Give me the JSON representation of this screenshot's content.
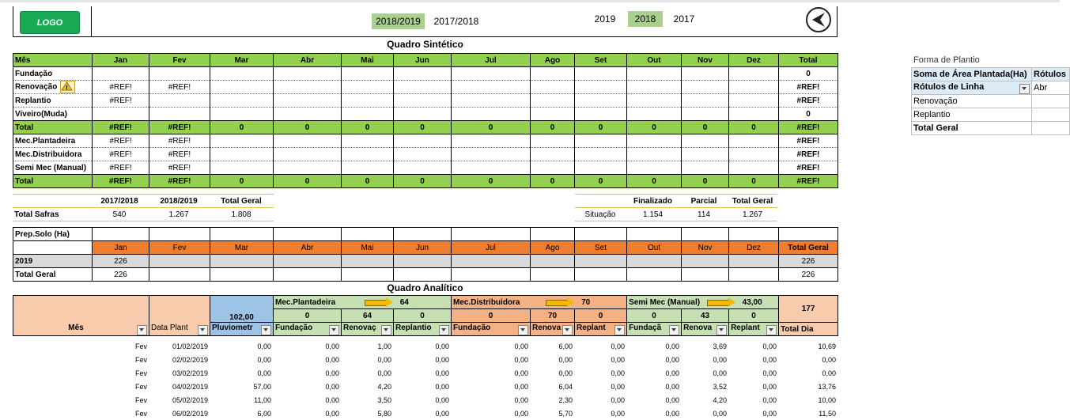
{
  "header": {
    "logo": "LOGO",
    "safra_options": [
      "2018/2019",
      "2017/2018"
    ],
    "safra_selected": "2018/2019",
    "year_options": [
      "2019",
      "2018",
      "2017"
    ],
    "year_selected": "2018",
    "nav_icon": "back-arrow-icon"
  },
  "sintetico": {
    "title": "Quadro Sintético",
    "columns": [
      "Mês",
      "Jan",
      "Fev",
      "Mar",
      "Abr",
      "Mai",
      "Jun",
      "Jul",
      "Ago",
      "Set",
      "Out",
      "Nov",
      "Dez",
      "Total"
    ],
    "rows": [
      {
        "label": "Fundação",
        "cells": [
          "",
          "",
          "",
          "",
          "",
          "",
          "",
          "",
          "",
          "",
          "",
          ""
        ],
        "total": "0"
      },
      {
        "label": "Renovação",
        "cells": [
          "#REF!",
          "#REF!",
          "",
          "",
          "",
          "",
          "",
          "",
          "",
          "",
          "",
          ""
        ],
        "total": "#REF!"
      },
      {
        "label": "Replantio",
        "cells": [
          "#REF!",
          "",
          "",
          "",
          "",
          "",
          "",
          "",
          "",
          "",
          "",
          ""
        ],
        "total": "#REF!"
      },
      {
        "label": "Viveiro(Muda)",
        "cells": [
          "",
          "",
          "",
          "",
          "",
          "",
          "",
          "",
          "",
          "",
          "",
          ""
        ],
        "total": "0"
      }
    ],
    "total1": {
      "label": "Total",
      "cells": [
        "#REF!",
        "#REF!",
        "0",
        "0",
        "0",
        "0",
        "0",
        "0",
        "0",
        "0",
        "0",
        "0"
      ],
      "total": "#REF!"
    },
    "rows2": [
      {
        "label": "Mec.Plantadeira",
        "cells": [
          "#REF!",
          "#REF!",
          "",
          "",
          "",
          "",
          "",
          "",
          "",
          "",
          "",
          ""
        ],
        "total": "#REF!"
      },
      {
        "label": "Mec.Distribuidora",
        "cells": [
          "#REF!",
          "#REF!",
          "",
          "",
          "",
          "",
          "",
          "",
          "",
          "",
          "",
          ""
        ],
        "total": "#REF!"
      },
      {
        "label": "Semi Mec (Manual)",
        "cells": [
          "#REF!",
          "#REF!",
          "",
          "",
          "",
          "",
          "",
          "",
          "",
          "",
          "",
          ""
        ],
        "total": "#REF!"
      }
    ],
    "total2": {
      "label": "Total",
      "cells": [
        "#REF!",
        "#REF!",
        "0",
        "0",
        "0",
        "0",
        "0",
        "0",
        "0",
        "0",
        "0",
        "0"
      ],
      "total": "#REF!"
    }
  },
  "safras": {
    "headers": [
      "2017/2018",
      "2018/2019",
      "Total Geral"
    ],
    "label": "Total Safras",
    "values": [
      "540",
      "1.267",
      "1.808"
    ]
  },
  "situacao": {
    "headers": [
      "Finalizado",
      "Parcial",
      "Total Geral"
    ],
    "label": "Situação",
    "values": [
      "1.154",
      "114",
      "1.267"
    ]
  },
  "prep": {
    "title": "Prep.Solo (Ha)",
    "months": [
      "Jan",
      "Fev",
      "Mar",
      "Abr",
      "Mai",
      "Jun",
      "Jul",
      "Ago",
      "Set",
      "Out",
      "Nov",
      "Dez"
    ],
    "total_header": "Total Geral",
    "rows": [
      {
        "label": "2019",
        "cells": [
          "226",
          "",
          "",
          "",
          "",
          "",
          "",
          "",
          "",
          "",
          "",
          ""
        ],
        "total": "226"
      },
      {
        "label": "Total Geral",
        "cells": [
          "226",
          "",
          "",
          "",
          "",
          "",
          "",
          "",
          "",
          "",
          "",
          ""
        ],
        "total": "226"
      }
    ]
  },
  "analitico": {
    "title": "Quadro Analítico",
    "col_mes": "Mês",
    "col_data": "Data Plant",
    "pluvio_value": "102,00",
    "col_pluvio": "Pluviometr",
    "groups": [
      {
        "name": "Mec.Plantadeira",
        "total": "64",
        "sub": [
          {
            "v": "0",
            "h": "Fundação"
          },
          {
            "v": "64",
            "h": "Renovaç"
          },
          {
            "v": "0",
            "h": "Replantio"
          }
        ]
      },
      {
        "name": "Mec.Distribuidora",
        "total": "70",
        "sub": [
          {
            "v": "0",
            "h": "Fundação"
          },
          {
            "v": "70",
            "h": "Renova"
          },
          {
            "v": "0",
            "h": "Replant"
          }
        ]
      },
      {
        "name": "Semi Mec (Manual)",
        "total": "43,00",
        "sub": [
          {
            "v": "0",
            "h": "Fundaçã"
          },
          {
            "v": "43",
            "h": "Renova"
          },
          {
            "v": "0",
            "h": "Replant"
          }
        ]
      }
    ],
    "total_value": "177",
    "col_total": "Total Dia",
    "data_rows": [
      [
        "Fev",
        "01/02/2019",
        "0,00",
        "0,00",
        "1,00",
        "0,00",
        "0,00",
        "6,00",
        "0,00",
        "0,00",
        "3,69",
        "0,00",
        "10,69"
      ],
      [
        "Fev",
        "02/02/2019",
        "0,00",
        "0,00",
        "0,00",
        "0,00",
        "0,00",
        "0,00",
        "0,00",
        "0,00",
        "0,00",
        "0,00",
        "0,00"
      ],
      [
        "Fev",
        "03/02/2019",
        "0,00",
        "0,00",
        "0,00",
        "0,00",
        "0,00",
        "0,00",
        "0,00",
        "0,00",
        "0,00",
        "0,00",
        "0,00"
      ],
      [
        "Fev",
        "04/02/2019",
        "57,00",
        "0,00",
        "4,20",
        "0,00",
        "0,00",
        "6,04",
        "0,00",
        "0,00",
        "3,52",
        "0,00",
        "13,76"
      ],
      [
        "Fev",
        "05/02/2019",
        "11,00",
        "0,00",
        "3,50",
        "0,00",
        "0,00",
        "2,30",
        "0,00",
        "0,00",
        "4,20",
        "0,00",
        "10,00"
      ],
      [
        "Fev",
        "06/02/2019",
        "6,00",
        "0,00",
        "5,80",
        "0,00",
        "0,00",
        "5,70",
        "0,00",
        "0,00",
        "0,00",
        "0,00",
        "11,50"
      ]
    ]
  },
  "pivot": {
    "title": "Forma de Plantio",
    "header_left": "Soma de Área Plantada(Ha)",
    "header_right": "Rótulos",
    "row_labels_header": "Rótulos de Linha",
    "col_first": "Abr",
    "rows": [
      "Renovação",
      "Replantio"
    ],
    "total": "Total Geral"
  }
}
